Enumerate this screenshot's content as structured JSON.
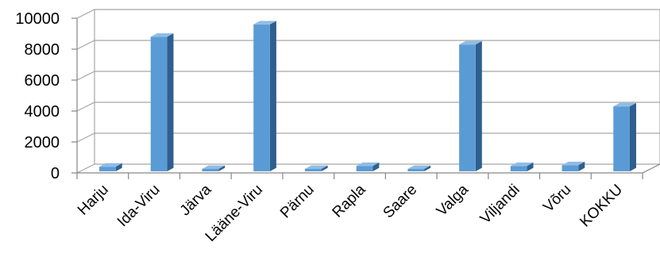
{
  "chart_data": {
    "type": "bar",
    "style": "3d-column",
    "title": "",
    "xlabel": "",
    "ylabel": "",
    "categories": [
      "Harju",
      "Ida-Viru",
      "Järva",
      "Lääne-Viru",
      "Pärnu",
      "Rapla",
      "Saare",
      "Valga",
      "Viljandi",
      "Võru",
      "KOKKU"
    ],
    "values": [
      400,
      8800,
      200,
      9600,
      50,
      450,
      250,
      8300,
      450,
      500,
      4300
    ],
    "ylim": [
      0,
      10000
    ],
    "yticks": [
      "0",
      "2000",
      "4000",
      "6000",
      "8000",
      "10000"
    ],
    "grid": true,
    "legend": "none",
    "colors": {
      "bar_front": "#5b9bd5",
      "bar_side": "#2e5f8f",
      "bar_top": "#8fbce6",
      "grid": "#a6a6a6",
      "axis": "#868686"
    }
  }
}
